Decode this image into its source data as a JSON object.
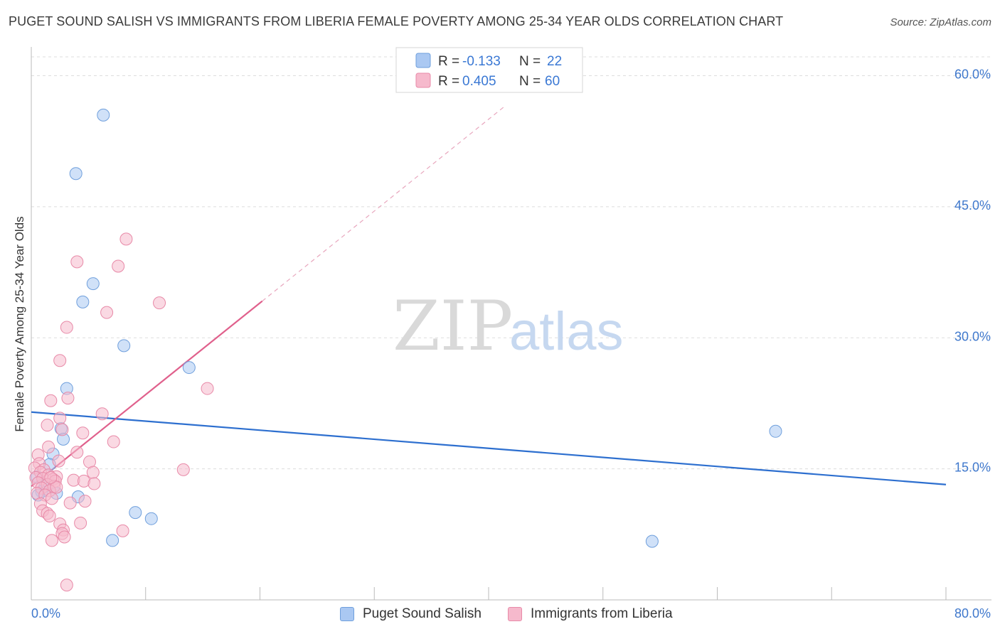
{
  "header": {
    "title": "PUGET SOUND SALISH VS IMMIGRANTS FROM LIBERIA FEMALE POVERTY AMONG 25-34 YEAR OLDS CORRELATION CHART",
    "source": "Source: ZipAtlas.com"
  },
  "watermark": {
    "zip": "ZIP",
    "atlas": "atlas"
  },
  "stats": [
    {
      "r_label": "R = ",
      "r_value": "-0.133",
      "n_label": "N = ",
      "n_value": "22"
    },
    {
      "r_label": "R = ",
      "r_value": "0.405",
      "n_label": "N = ",
      "n_value": "60"
    }
  ],
  "legend": {
    "blue": "Puget Sound Salish",
    "pink": "Immigrants from Liberia"
  },
  "colors": {
    "blue_fill": "#aac8f2",
    "blue_stroke": "#6f9fdc",
    "blue_line": "#2d6fcf",
    "pink_fill": "#f6b9cc",
    "pink_stroke": "#e88aa8",
    "pink_line": "#e0608c",
    "tick_text": "#3f78cc",
    "grid": "#dddddd"
  },
  "chart_data": {
    "type": "scatter",
    "title": "PUGET SOUND SALISH VS IMMIGRANTS FROM LIBERIA FEMALE POVERTY AMONG 25-34 YEAR OLDS CORRELATION CHART",
    "xlabel": "",
    "ylabel": "Female Poverty Among 25-34 Year Olds",
    "xlim": [
      0,
      80
    ],
    "ylim": [
      0,
      63.3
    ],
    "x_tick_labels": [
      "0.0%",
      "80.0%"
    ],
    "y_ticks": [
      15,
      30,
      45,
      60
    ],
    "y_tick_labels": [
      "15.0%",
      "30.0%",
      "45.0%",
      "60.0%"
    ],
    "grid": true,
    "series": [
      {
        "name": "Puget Sound Salish",
        "color": "blue",
        "points": [
          [
            6.3,
            55.5
          ],
          [
            3.9,
            48.8
          ],
          [
            5.4,
            36.2
          ],
          [
            4.5,
            34.1
          ],
          [
            8.1,
            29.1
          ],
          [
            13.8,
            26.6
          ],
          [
            3.1,
            24.2
          ],
          [
            2.6,
            19.6
          ],
          [
            2.8,
            18.4
          ],
          [
            1.9,
            16.7
          ],
          [
            1.6,
            15.5
          ],
          [
            0.5,
            14.1
          ],
          [
            1.2,
            13.0
          ],
          [
            0.9,
            12.4
          ],
          [
            0.6,
            12.0
          ],
          [
            2.2,
            12.2
          ],
          [
            4.1,
            11.8
          ],
          [
            9.1,
            10.0
          ],
          [
            10.5,
            9.3
          ],
          [
            7.1,
            6.8
          ],
          [
            54.3,
            6.7
          ],
          [
            65.1,
            19.3
          ]
        ],
        "trend": {
          "x": [
            0,
            80
          ],
          "y": [
            21.5,
            13.2
          ]
        }
      },
      {
        "name": "Immigrants from Liberia",
        "color": "pink",
        "points": [
          [
            8.3,
            41.3
          ],
          [
            4.0,
            38.7
          ],
          [
            7.6,
            38.2
          ],
          [
            11.2,
            34.0
          ],
          [
            6.6,
            32.9
          ],
          [
            3.1,
            31.2
          ],
          [
            2.5,
            27.4
          ],
          [
            15.4,
            24.2
          ],
          [
            3.2,
            23.1
          ],
          [
            1.7,
            22.8
          ],
          [
            6.2,
            21.3
          ],
          [
            2.5,
            20.8
          ],
          [
            1.4,
            20.0
          ],
          [
            4.5,
            19.1
          ],
          [
            2.7,
            19.5
          ],
          [
            7.2,
            18.1
          ],
          [
            1.5,
            17.5
          ],
          [
            4.0,
            16.9
          ],
          [
            0.6,
            16.6
          ],
          [
            5.1,
            15.8
          ],
          [
            2.4,
            15.9
          ],
          [
            0.7,
            15.6
          ],
          [
            0.3,
            15.1
          ],
          [
            1.1,
            14.9
          ],
          [
            0.8,
            14.6
          ],
          [
            1.5,
            14.3
          ],
          [
            2.2,
            14.1
          ],
          [
            0.4,
            14.0
          ],
          [
            1.0,
            13.9
          ],
          [
            1.9,
            13.8
          ],
          [
            2.1,
            13.6
          ],
          [
            5.4,
            14.6
          ],
          [
            13.3,
            14.9
          ],
          [
            0.6,
            13.4
          ],
          [
            1.4,
            13.2
          ],
          [
            2.0,
            13.0
          ],
          [
            3.7,
            13.7
          ],
          [
            4.6,
            13.6
          ],
          [
            5.5,
            13.3
          ],
          [
            0.9,
            12.8
          ],
          [
            1.6,
            12.5
          ],
          [
            0.5,
            12.2
          ],
          [
            1.2,
            12.0
          ],
          [
            1.8,
            11.6
          ],
          [
            0.8,
            11.0
          ],
          [
            3.4,
            11.1
          ],
          [
            4.7,
            11.3
          ],
          [
            1.0,
            10.2
          ],
          [
            1.4,
            9.9
          ],
          [
            1.6,
            9.6
          ],
          [
            2.5,
            8.7
          ],
          [
            4.3,
            8.8
          ],
          [
            2.8,
            8.0
          ],
          [
            8.0,
            7.9
          ],
          [
            2.7,
            7.6
          ],
          [
            2.9,
            7.2
          ],
          [
            1.8,
            6.8
          ],
          [
            3.1,
            1.7
          ],
          [
            2.2,
            12.9
          ],
          [
            1.7,
            14.0
          ]
        ],
        "trend": {
          "x": [
            0,
            20.2
          ],
          "y": [
            13.0,
            34.2
          ]
        },
        "trend_extension": {
          "x": [
            20.2,
            41.5
          ],
          "y": [
            34.2,
            56.6
          ]
        }
      }
    ]
  }
}
